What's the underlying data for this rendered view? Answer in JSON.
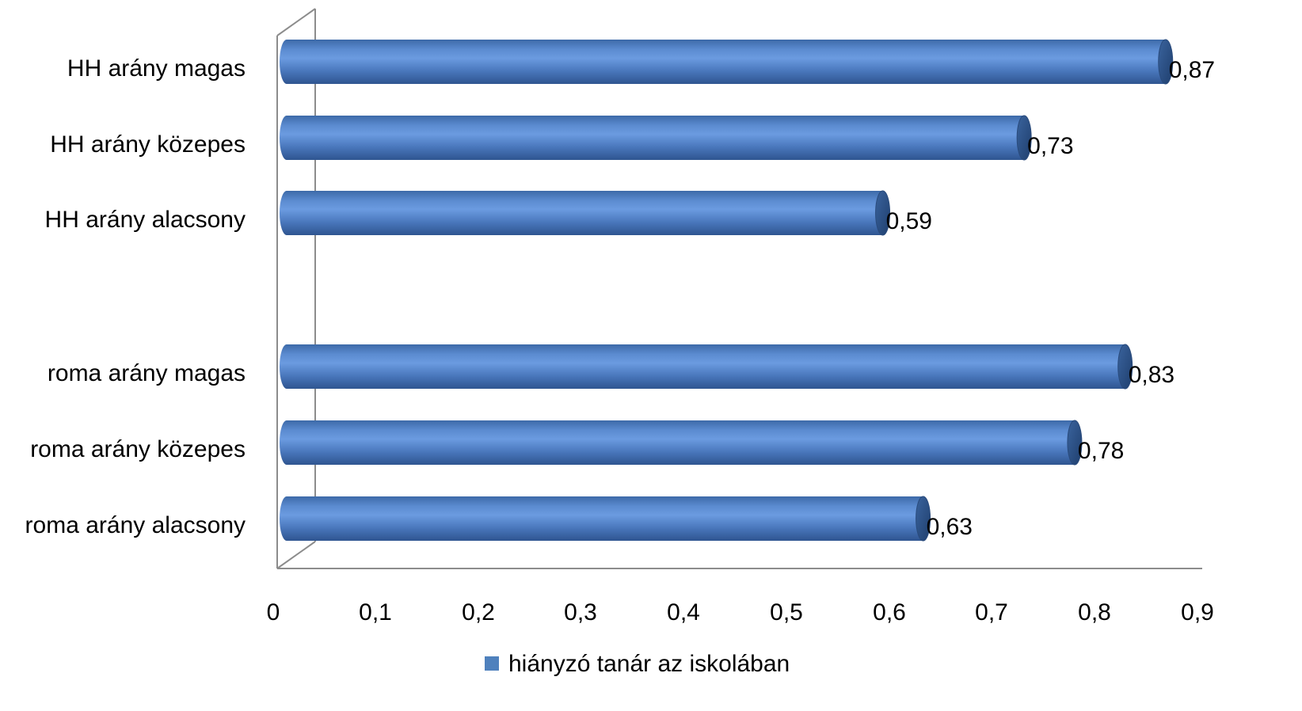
{
  "chart_data": {
    "type": "bar",
    "orientation": "horizontal",
    "style": "3d-cylinder",
    "categories": [
      "HH arány magas",
      "HH arány közepes",
      "HH arány alacsony",
      "roma arány magas",
      "roma arány közepes",
      "roma arány alacsony"
    ],
    "series": [
      {
        "name": "hiányzó tanár az iskolában",
        "values": [
          0.87,
          0.73,
          0.59,
          0.83,
          0.78,
          0.63
        ],
        "value_labels": [
          "0,87",
          "0,73",
          "0,59",
          "0,83",
          "0,78",
          "0,63"
        ],
        "color": "#4f81bd"
      }
    ],
    "xlim": [
      0,
      0.9
    ],
    "x_ticks": [
      0,
      0.1,
      0.2,
      0.3,
      0.4,
      0.5,
      0.6,
      0.7,
      0.8,
      0.9
    ],
    "x_tick_labels": [
      "0",
      "0,1",
      "0,2",
      "0,3",
      "0,4",
      "0,5",
      "0,6",
      "0,7",
      "0,8",
      "0,9"
    ],
    "grid": false,
    "legend_position": "bottom"
  }
}
